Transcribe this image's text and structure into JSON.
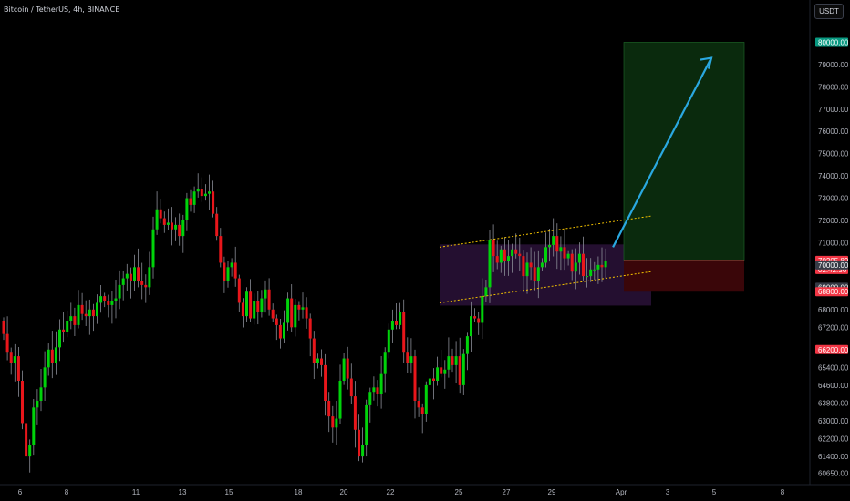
{
  "header": {
    "symbol_title": "Bitcoin / TetherUS, 4h, BINANCE"
  },
  "price_axis": {
    "currency_button": "USDT"
  },
  "chart_data": {
    "type": "candlestick",
    "title": "Bitcoin / TetherUS, 4h, BINANCE",
    "xlabel": "",
    "ylabel": "",
    "ylim": [
      60300,
      81000
    ],
    "x_tick_labels": [
      "6",
      "8",
      "11",
      "13",
      "15",
      "18",
      "20",
      "22",
      "25",
      "27",
      "29",
      "Apr",
      "3",
      "5",
      "8"
    ],
    "y_tick_labels": [
      "80000.00",
      "79000.00",
      "78000.00",
      "77000.00",
      "76000.00",
      "75000.00",
      "74000.00",
      "73000.00",
      "72000.00",
      "71000.00",
      "70205.89",
      "02:42:36",
      "70000.00",
      "69000.00",
      "68800.00",
      "68000.00",
      "67200.00",
      "66200.00",
      "65400.00",
      "64600.00",
      "63800.00",
      "63000.00",
      "62200.00",
      "61400.00",
      "60650.00"
    ],
    "price_tags": [
      {
        "label": "80000.00",
        "value": 80000,
        "color": "#089981"
      },
      {
        "label": "70205.89",
        "value": 70205.89,
        "color": "#f23645",
        "countdown": "02:42:36"
      },
      {
        "label": "70000.00",
        "value": 70000,
        "color": "#363a45"
      },
      {
        "label": "69000.00",
        "value": 69000,
        "color": "#363a45"
      },
      {
        "label": "68800.00",
        "value": 68800,
        "color": "#f23645"
      },
      {
        "label": "66200.00",
        "value": 66200,
        "color": "#f23645"
      }
    ],
    "series_close": [
      66900,
      66100,
      65600,
      65900,
      64800,
      62900,
      61400,
      61900,
      63600,
      63900,
      64500,
      65400,
      66200,
      65600,
      66300,
      67100,
      67000,
      67500,
      67700,
      67300,
      68200,
      67800,
      67700,
      68000,
      67700,
      68300,
      68600,
      68400,
      68200,
      68400,
      68500,
      69100,
      69400,
      69600,
      69300,
      69900,
      69300,
      69100,
      69000,
      69900,
      71600,
      72500,
      72100,
      71800,
      71900,
      71600,
      71800,
      71300,
      72000,
      73000,
      72700,
      73300,
      73400,
      73100,
      73200,
      73300,
      72300,
      71300,
      70100,
      69300,
      69900,
      70100,
      69400,
      68300,
      67700,
      68800,
      67600,
      68400,
      67900,
      68500,
      68900,
      68000,
      67600,
      67300,
      66700,
      67400,
      68500,
      67200,
      68200,
      68000,
      68100,
      67600,
      66700,
      65600,
      65800,
      65500,
      63900,
      63200,
      62700,
      63100,
      64800,
      65800,
      64900,
      64100,
      62600,
      61400,
      61900,
      63700,
      64300,
      64500,
      64200,
      65100,
      66100,
      67100,
      67500,
      67300,
      67900,
      66100,
      65600,
      65900,
      63900,
      63600,
      63300,
      64600,
      64900,
      64800,
      65400,
      65100,
      65300,
      65900,
      65500,
      65900,
      64600,
      66000,
      66800,
      67700,
      67600,
      67400,
      68600,
      69000,
      71100,
      70400,
      70100,
      70700,
      70200,
      70400,
      70700,
      70500,
      70400,
      69500,
      70100,
      69900,
      69300,
      69900,
      70100,
      70800,
      70900,
      71300,
      70600,
      70800,
      70300,
      70500,
      69700,
      70100,
      70500,
      69500,
      69500,
      69800,
      69800,
      70000,
      69900,
      70200
    ],
    "series_open_start": 67500,
    "projection": {
      "channel_upper": [
        [
          70800,
          72200
        ]
      ],
      "channel_lower": [
        [
          68300,
          69700
        ]
      ],
      "target_zone": {
        "top": 80000,
        "bottom": 70205.89
      },
      "stop_zone": {
        "top": 70205.89,
        "bottom": 68800
      },
      "arrow_to": 79300
    },
    "grid": false,
    "legend": "none"
  },
  "colors": {
    "background": "#000000",
    "up": "#00d30a",
    "down": "#e8161b",
    "wick": "#8a8d96",
    "channel": "#f5c400",
    "channel_fill": "#2a1238",
    "target_fill": "#0a2a0d",
    "stop_fill": "#3a0609",
    "arrow": "#2aa8e0",
    "axis_text": "#b2b5be"
  }
}
